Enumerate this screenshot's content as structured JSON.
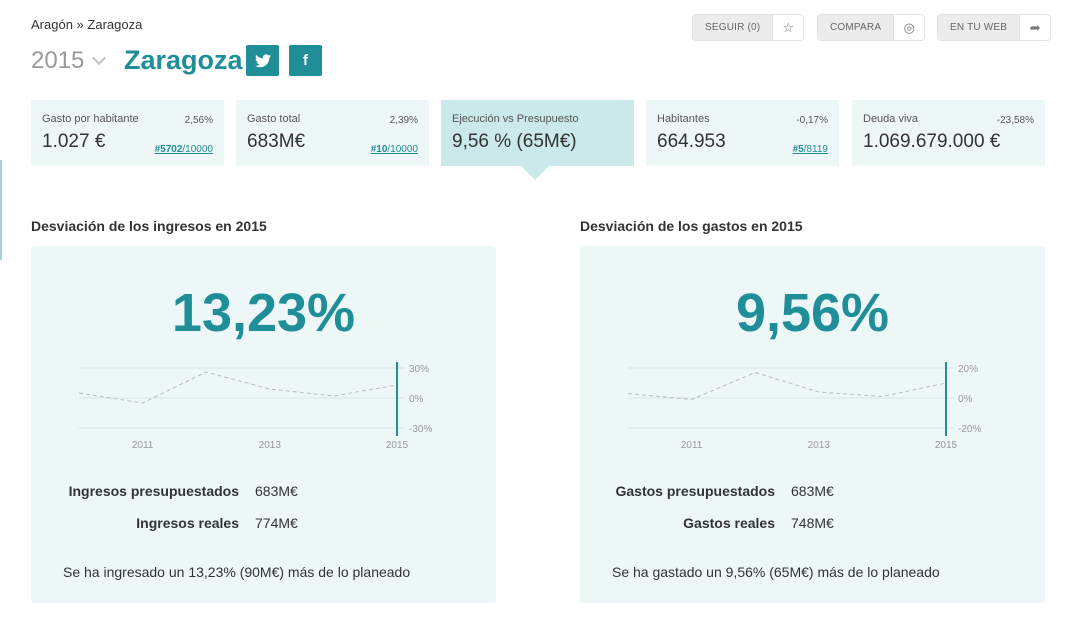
{
  "breadcrumb": {
    "region": "Aragón",
    "sep": "»",
    "city": "Zaragoza"
  },
  "header": {
    "year": "2015",
    "place": "Zaragoza",
    "twitter_glyph": "t",
    "facebook_glyph": "f"
  },
  "toolbar": {
    "follow_label": "SEGUIR (0)",
    "follow_icon": "star-icon",
    "compare_label": "COMPARA",
    "compare_icon": "compass-icon",
    "web_label": "EN TU WEB",
    "web_icon": "share-icon"
  },
  "kpis": [
    {
      "title": "Gasto por habitante",
      "change": "2,56%",
      "value": "1.027 €",
      "rank_pos": "#5702",
      "rank_total": "/10000"
    },
    {
      "title": "Gasto total",
      "change": "2,39%",
      "value": "683M€",
      "rank_pos": "#10",
      "rank_total": "/10000"
    },
    {
      "title": "Ejecución vs Presupuesto",
      "change": "",
      "value": "9,56 % (65M€)",
      "rank_pos": "",
      "rank_total": ""
    },
    {
      "title": "Habitantes",
      "change": "-0,17%",
      "value": "664.953",
      "rank_pos": "#5",
      "rank_total": "/8119"
    },
    {
      "title": "Deuda viva",
      "change": "-23,58%",
      "value": "1.069.679.000 €",
      "rank_pos": "",
      "rank_total": ""
    }
  ],
  "income": {
    "title": "Desviación de los ingresos en 2015",
    "big": "13,23%",
    "budget_label": "Ingresos presupuestados",
    "budget_value": "683M€",
    "real_label": "Ingresos reales",
    "real_value": "774M€",
    "summary": "Se ha ingresado un 13,23% (90M€) más de lo planeado"
  },
  "expense": {
    "title": "Desviación de los gastos en 2015",
    "big": "9,56%",
    "budget_label": "Gastos presupuestados",
    "budget_value": "683M€",
    "real_label": "Gastos reales",
    "real_value": "748M€",
    "summary": "Se ha gastado un 9,56% (65M€) más de lo planeado"
  },
  "chart_data": [
    {
      "type": "line",
      "x": [
        2010,
        2011,
        2012,
        2013,
        2014,
        2015
      ],
      "values": [
        5,
        -5,
        26,
        9,
        2,
        13
      ],
      "xticks": [
        "2011",
        "2013",
        "2015"
      ],
      "yticks": [
        "30%",
        "0%",
        "-30%"
      ],
      "ylim": [
        -30,
        30
      ],
      "highlight_x": 2015,
      "grid": true
    },
    {
      "type": "line",
      "x": [
        2010,
        2011,
        2012,
        2013,
        2014,
        2015
      ],
      "values": [
        3,
        -1,
        17,
        4,
        1,
        10
      ],
      "xticks": [
        "2011",
        "2013",
        "2015"
      ],
      "yticks": [
        "20%",
        "0%",
        "-20%"
      ],
      "ylim": [
        -20,
        20
      ],
      "highlight_x": 2015,
      "grid": true
    }
  ],
  "colors": {
    "accent": "#1f8e98",
    "panel": "#eef7f7",
    "active": "#cbe8ea"
  }
}
